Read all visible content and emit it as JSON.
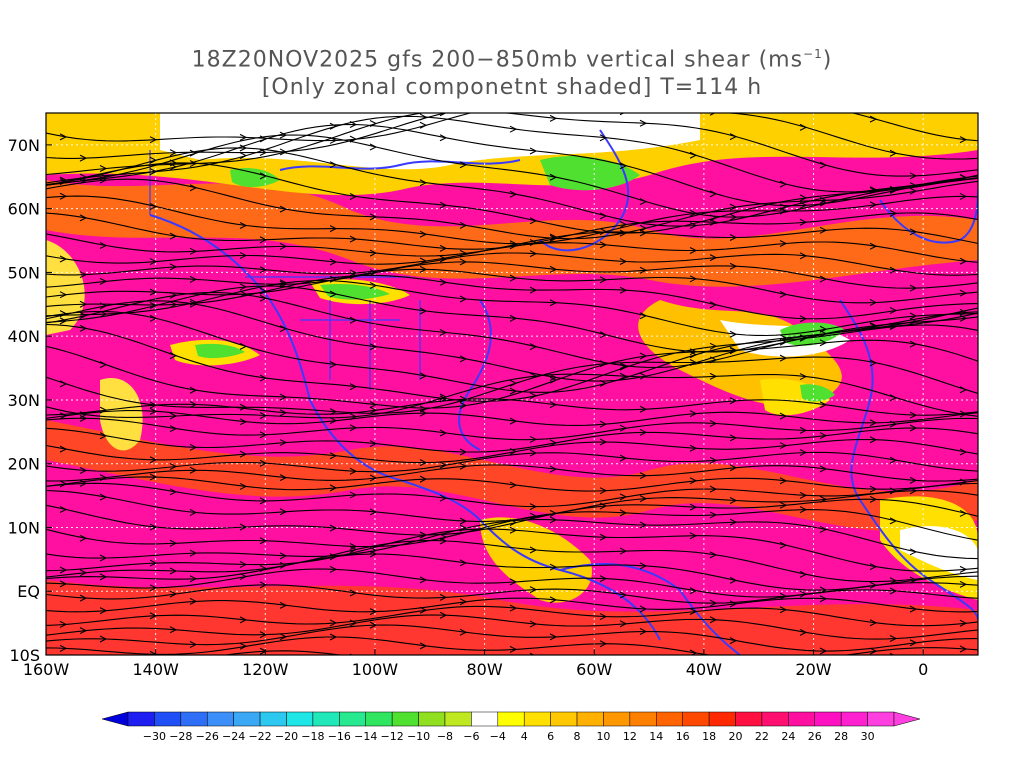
{
  "title": {
    "line1": "18Z20NOV2025 gfs 200−850mb vertical shear (ms",
    "line1_sup": "−1",
    "line1_end": ")",
    "line2": "[Only zonal componetnt shaded] T=114 h"
  },
  "map": {
    "lon_ticks": [
      "160W",
      "140W",
      "120W",
      "100W",
      "80W",
      "60W",
      "40W",
      "20W",
      "0"
    ],
    "lat_ticks": [
      "70N",
      "60N",
      "50N",
      "40N",
      "30N",
      "20N",
      "10N",
      "EQ",
      "10S"
    ],
    "lon_range": [
      -160,
      10
    ],
    "lat_range": [
      -10,
      75
    ]
  },
  "colorbar": {
    "labels": [
      "−30",
      "−28",
      "−26",
      "−24",
      "−22",
      "−20",
      "−18",
      "−16",
      "−14",
      "−12",
      "−10",
      "−8",
      "−6",
      "−4",
      "4",
      "6",
      "8",
      "10",
      "12",
      "14",
      "16",
      "18",
      "20",
      "22",
      "24",
      "26",
      "28",
      "30"
    ],
    "colors": [
      "#1e1ef0",
      "#2050f5",
      "#2f6ff7",
      "#3c8ff8",
      "#3aa8f4",
      "#2cc8f0",
      "#1ee6e6",
      "#20e8b8",
      "#28e890",
      "#30e660",
      "#50e030",
      "#90e020",
      "#c0e820",
      "#ffffff",
      "#ffff00",
      "#ffe000",
      "#ffc800",
      "#ffb000",
      "#ff9800",
      "#ff8000",
      "#ff6400",
      "#ff4800",
      "#ff2800",
      "#ff1040",
      "#ff1070",
      "#ff10a0",
      "#ff10c0",
      "#ff20d0",
      "#ff40e0"
    ],
    "left_arrow_color": "#0000dd",
    "right_arrow_color": "#ff40e0"
  }
}
